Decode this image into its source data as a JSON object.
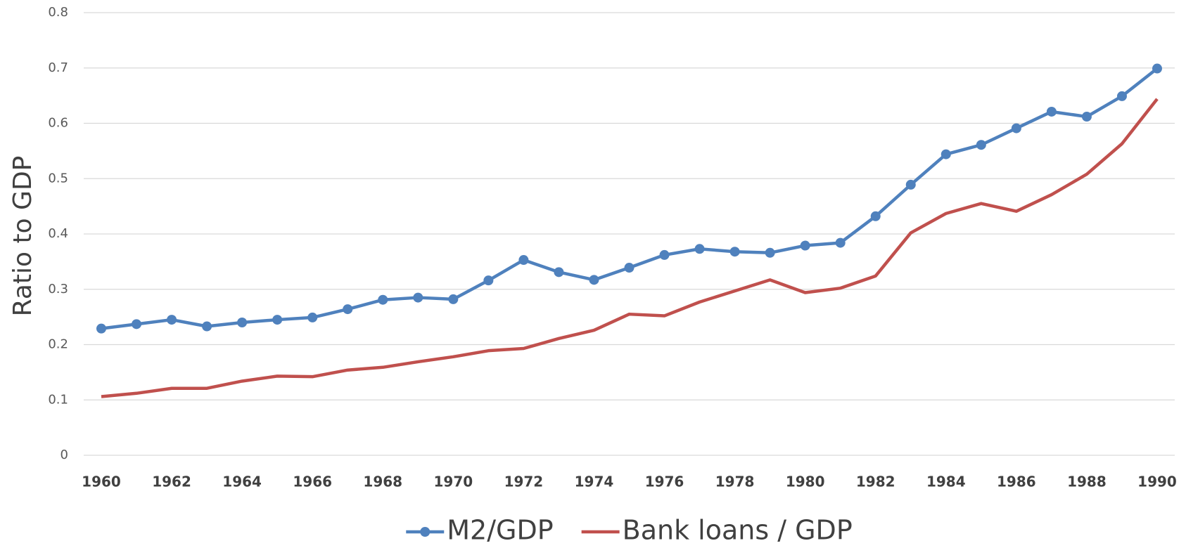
{
  "chart_data": {
    "type": "line",
    "y_label": "Ratio to GDP",
    "x": [
      1960,
      1961,
      1962,
      1963,
      1964,
      1965,
      1966,
      1967,
      1968,
      1969,
      1970,
      1971,
      1972,
      1973,
      1974,
      1975,
      1976,
      1977,
      1978,
      1979,
      1980,
      1981,
      1982,
      1983,
      1984,
      1985,
      1986,
      1987,
      1988,
      1989,
      1990
    ],
    "series": [
      {
        "name": "M2/GDP",
        "color": "#4f81bd",
        "marker": true,
        "values": [
          0.229,
          0.237,
          0.245,
          0.233,
          0.24,
          0.245,
          0.249,
          0.264,
          0.281,
          0.285,
          0.282,
          0.316,
          0.353,
          0.331,
          0.317,
          0.339,
          0.362,
          0.373,
          0.368,
          0.366,
          0.379,
          0.384,
          0.432,
          0.489,
          0.544,
          0.561,
          0.591,
          0.621,
          0.612,
          0.649,
          0.699
        ]
      },
      {
        "name": "Bank loans / GDP",
        "color": "#c0504d",
        "marker": false,
        "values": [
          0.106,
          0.112,
          0.121,
          0.121,
          0.134,
          0.143,
          0.142,
          0.154,
          0.159,
          0.169,
          0.178,
          0.189,
          0.193,
          0.211,
          0.226,
          0.255,
          0.252,
          0.277,
          0.297,
          0.317,
          0.294,
          0.302,
          0.324,
          0.402,
          0.437,
          0.455,
          0.441,
          0.471,
          0.508,
          0.563,
          0.644
        ]
      }
    ],
    "xlim": [
      1960,
      1990
    ],
    "xticks": [
      1960,
      1962,
      1964,
      1966,
      1968,
      1970,
      1972,
      1974,
      1976,
      1978,
      1980,
      1982,
      1984,
      1986,
      1988,
      1990
    ],
    "ylim": [
      0,
      0.8
    ],
    "yticks": [
      0,
      0.1,
      0.2,
      0.3,
      0.4,
      0.5,
      0.6,
      0.7,
      0.8
    ],
    "grid": true,
    "legend": "bottom"
  }
}
